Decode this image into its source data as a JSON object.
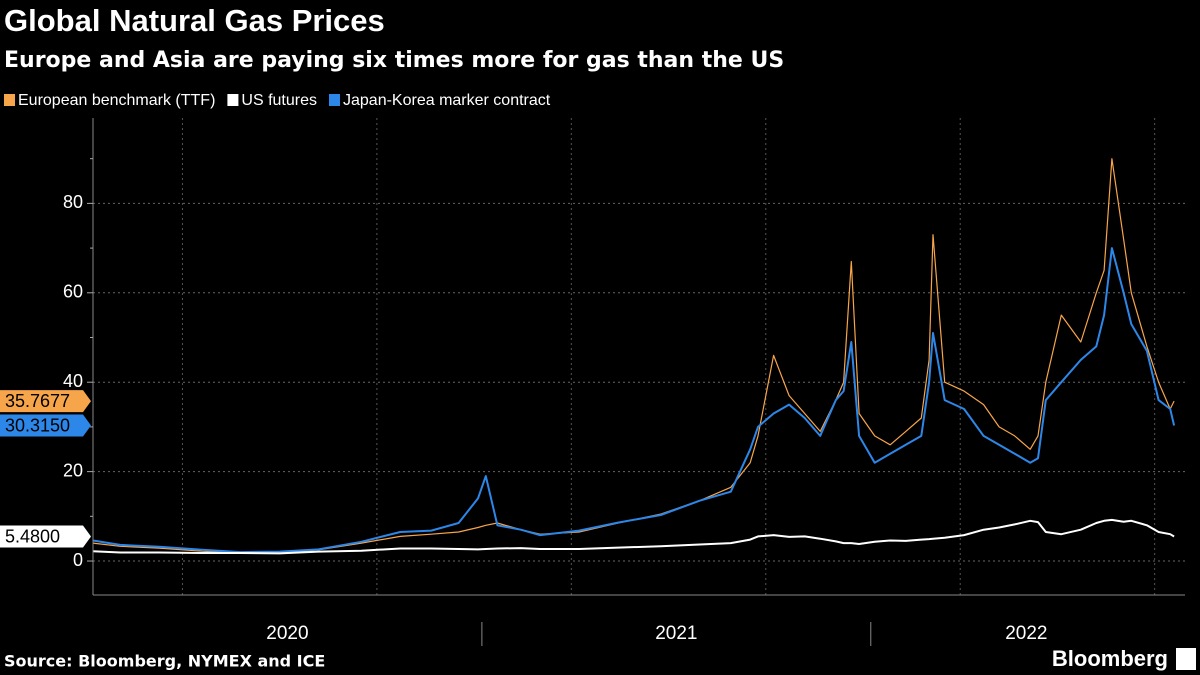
{
  "chart_data": {
    "type": "line",
    "title": "Global Natural Gas Prices",
    "subtitle": "Europe and Asia are paying six times more for gas than the US",
    "source": "Source: Bloomberg, NYMEX and ICE",
    "brand": "Bloomberg",
    "x": [
      2020.0,
      2020.07,
      2020.17,
      2020.28,
      2020.38,
      2020.48,
      2020.58,
      2020.69,
      2020.79,
      2020.87,
      2020.94,
      2020.99,
      2021.01,
      2021.04,
      2021.1,
      2021.15,
      2021.25,
      2021.35,
      2021.46,
      2021.56,
      2021.64,
      2021.69,
      2021.71,
      2021.75,
      2021.79,
      2021.83,
      2021.87,
      2021.91,
      2021.93,
      2021.95,
      2021.97,
      2022.01,
      2022.05,
      2022.09,
      2022.13,
      2022.15,
      2022.16,
      2022.19,
      2022.24,
      2022.29,
      2022.33,
      2022.37,
      2022.41,
      2022.43,
      2022.45,
      2022.49,
      2022.54,
      2022.58,
      2022.6,
      2022.62,
      2022.65,
      2022.67,
      2022.71,
      2022.74,
      2022.77,
      2022.78
    ],
    "series": [
      {
        "name": "European benchmark (TTF)",
        "color": "#f7a54a",
        "values": [
          4.0,
          3.3,
          2.9,
          2.2,
          1.8,
          1.8,
          2.5,
          4.0,
          5.5,
          6.0,
          6.5,
          7.5,
          8.0,
          8.5,
          7.0,
          6.0,
          6.5,
          8.5,
          10.5,
          13.5,
          16.5,
          22.0,
          28.0,
          46.0,
          37.0,
          33.0,
          29.0,
          36.0,
          40.0,
          67.0,
          33.0,
          28.0,
          26.0,
          29.0,
          32.0,
          45.0,
          73.0,
          40.0,
          38.0,
          35.0,
          30.0,
          28.0,
          25.0,
          28.0,
          40.0,
          55.0,
          49.0,
          60.0,
          65.0,
          90.0,
          72.0,
          60.0,
          48.0,
          40.0,
          34.0,
          35.7677
        ],
        "value_labels": [
          null,
          null,
          null,
          null,
          null,
          null,
          null,
          null,
          null,
          null,
          null,
          null,
          null,
          null,
          null,
          null,
          null,
          null,
          null,
          null,
          null,
          null,
          null,
          null,
          null,
          null,
          null,
          null,
          null,
          null,
          null,
          null,
          null,
          null,
          null,
          null,
          null,
          null,
          null,
          null,
          null,
          null,
          null,
          null,
          null,
          null,
          null,
          null,
          null,
          null,
          null,
          null,
          null,
          null,
          null,
          "35.7677"
        ]
      },
      {
        "name": "US futures",
        "color": "#ffffff",
        "values": [
          2.2,
          1.9,
          1.9,
          1.8,
          1.8,
          1.7,
          2.1,
          2.3,
          2.8,
          2.8,
          2.7,
          2.6,
          2.7,
          2.8,
          2.9,
          2.7,
          2.7,
          3.0,
          3.3,
          3.7,
          4.0,
          4.8,
          5.5,
          5.8,
          5.4,
          5.5,
          5.0,
          4.4,
          4.0,
          4.0,
          3.8,
          4.3,
          4.6,
          4.5,
          4.8,
          4.9,
          5.0,
          5.2,
          5.8,
          7.0,
          7.5,
          8.2,
          9.0,
          8.7,
          6.5,
          6.0,
          7.0,
          8.5,
          9.0,
          9.2,
          8.8,
          9.0,
          8.0,
          6.5,
          6.0,
          5.48
        ],
        "value_labels": [
          null,
          null,
          null,
          null,
          null,
          null,
          null,
          null,
          null,
          null,
          null,
          null,
          null,
          null,
          null,
          null,
          null,
          null,
          null,
          null,
          null,
          null,
          null,
          null,
          null,
          null,
          null,
          null,
          null,
          null,
          null,
          null,
          null,
          null,
          null,
          null,
          null,
          null,
          null,
          null,
          null,
          null,
          null,
          null,
          null,
          null,
          null,
          null,
          null,
          null,
          null,
          null,
          null,
          null,
          null,
          "5.4800"
        ]
      },
      {
        "name": "Japan-Korea marker contract",
        "color": "#2d87e8",
        "values": [
          4.6,
          3.6,
          3.2,
          2.5,
          2.0,
          2.1,
          2.6,
          4.3,
          6.5,
          6.8,
          8.5,
          14.0,
          19.0,
          8.0,
          7.0,
          5.8,
          6.8,
          8.6,
          10.3,
          13.5,
          15.5,
          25.0,
          30.0,
          33.0,
          35.0,
          32.0,
          28.0,
          36.0,
          38.0,
          49.0,
          28.0,
          22.0,
          24.0,
          26.0,
          28.0,
          40.0,
          51.0,
          36.0,
          34.0,
          28.0,
          26.0,
          24.0,
          22.0,
          23.0,
          36.0,
          40.0,
          45.0,
          48.0,
          55.0,
          70.0,
          60.0,
          53.0,
          47.0,
          36.0,
          34.0,
          30.315
        ],
        "value_labels": [
          null,
          null,
          null,
          null,
          null,
          null,
          null,
          null,
          null,
          null,
          null,
          null,
          null,
          null,
          null,
          null,
          null,
          null,
          null,
          null,
          null,
          null,
          null,
          null,
          null,
          null,
          null,
          null,
          null,
          null,
          null,
          null,
          null,
          null,
          null,
          null,
          null,
          null,
          null,
          null,
          null,
          null,
          null,
          null,
          null,
          null,
          null,
          null,
          null,
          null,
          null,
          null,
          null,
          null,
          null,
          "30.3150"
        ]
      }
    ],
    "xlim": [
      2020,
      2022.808
    ],
    "xticks": [
      {
        "value": 2020.5,
        "label": "2020"
      },
      {
        "value": 2021.5,
        "label": "2021"
      },
      {
        "value": 2022.4,
        "label": "2022"
      }
    ],
    "year_separators": [
      2021,
      2022
    ],
    "xgrid": [
      2020.23,
      2020.73,
      2021.23,
      2021.73,
      2022.23,
      2022.73
    ],
    "ylim": [
      -7.6,
      99.1
    ],
    "yticks": [
      0,
      20,
      40,
      60,
      80
    ],
    "yminor_ticks": [
      10,
      30,
      50,
      70,
      90
    ],
    "grid": true,
    "legend": "top-left"
  }
}
